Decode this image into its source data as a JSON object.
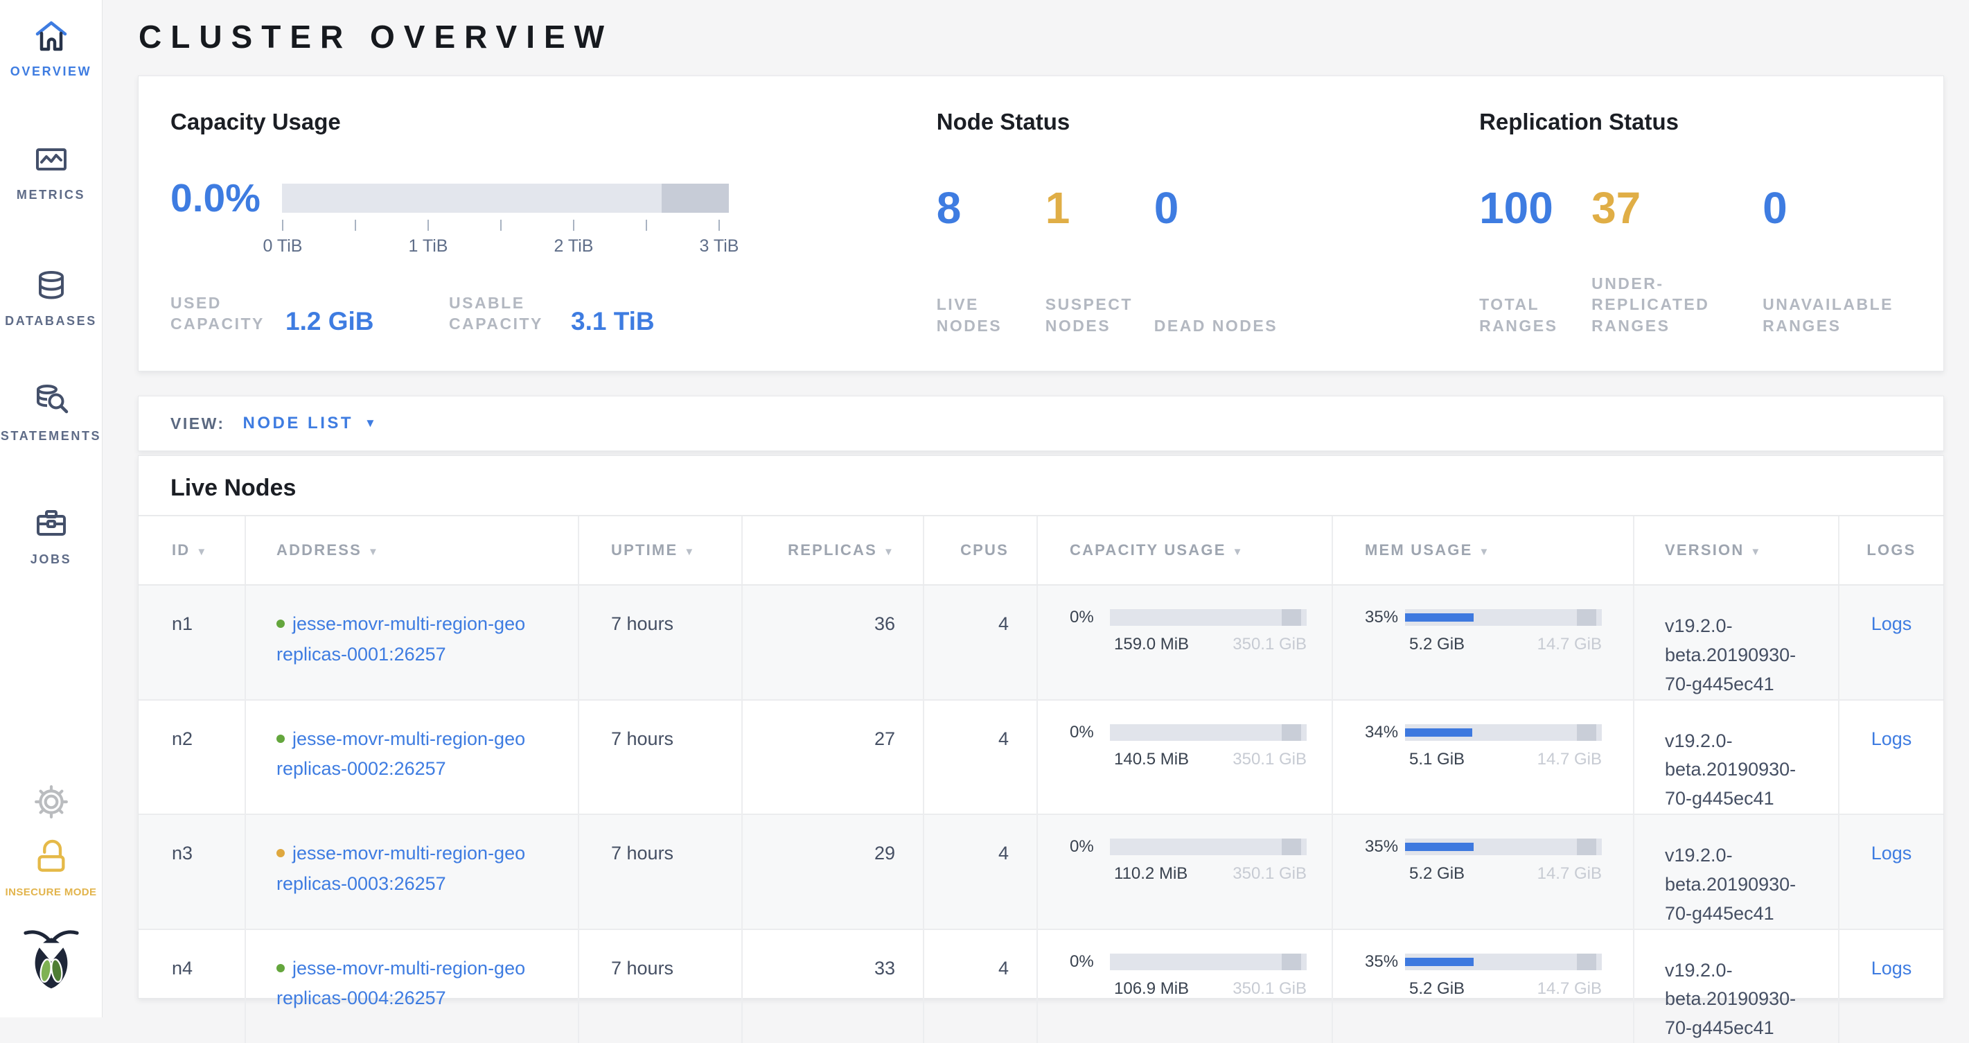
{
  "app": {
    "title": "CLUSTER OVERVIEW"
  },
  "icons": {
    "sort_desc": "▼",
    "caret_down": "▼"
  },
  "colors": {
    "accent_blue": "#3E7CE1",
    "warning_yellow": "#E0AE46",
    "healthy_green": "#64A63D",
    "suspect_yellow": "#DFA83F"
  },
  "sidebar": {
    "nav": [
      {
        "label": "OVERVIEW",
        "icon": "home-icon",
        "active": true
      },
      {
        "label": "METRICS",
        "icon": "metrics-icon",
        "active": false
      },
      {
        "label": "DATABASES",
        "icon": "databases-icon",
        "active": false
      },
      {
        "label": "STATEMENTS",
        "icon": "statements-icon",
        "active": false
      },
      {
        "label": "JOBS",
        "icon": "jobs-icon",
        "active": false
      }
    ],
    "security": {
      "label": "INSECURE MODE"
    }
  },
  "summary": {
    "capacity": {
      "title": "Capacity Usage",
      "percent": "0.0%",
      "scale_ticks": [
        "0 TiB",
        "1 TiB",
        "2 TiB",
        "3 TiB"
      ],
      "used_label": "USED CAPACITY",
      "used_value": "1.2 GiB",
      "usable_label": "USABLE CAPACITY",
      "usable_value": "3.1 TiB"
    },
    "nodes": {
      "title": "Node Status",
      "stats": [
        {
          "value": "8",
          "label": "LIVE NODES",
          "tone": "blue"
        },
        {
          "value": "1",
          "label": "SUSPECT NODES",
          "tone": "yellow"
        },
        {
          "value": "0",
          "label": "DEAD NODES",
          "tone": "blue"
        }
      ]
    },
    "replication": {
      "title": "Replication Status",
      "stats": [
        {
          "value": "100",
          "label": "TOTAL RANGES",
          "tone": "blue"
        },
        {
          "value": "37",
          "label": "UNDER-REPLICATED RANGES",
          "tone": "yellow"
        },
        {
          "value": "0",
          "label": "UNAVAILABLE RANGES",
          "tone": "blue"
        }
      ]
    }
  },
  "view_bar": {
    "label": "VIEW:",
    "selected": "NODE LIST"
  },
  "table": {
    "title": "Live Nodes",
    "columns": [
      {
        "label": "ID",
        "sortable": true
      },
      {
        "label": "ADDRESS",
        "sortable": true
      },
      {
        "label": "UPTIME",
        "sortable": true
      },
      {
        "label": "REPLICAS",
        "sortable": true
      },
      {
        "label": "CPUS",
        "sortable": false
      },
      {
        "label": "CAPACITY USAGE",
        "sortable": true
      },
      {
        "label": "MEM USAGE",
        "sortable": true
      },
      {
        "label": "VERSION",
        "sortable": true
      },
      {
        "label": "LOGS",
        "sortable": false
      }
    ],
    "rows": [
      {
        "id": "n1",
        "status": "healthy",
        "address_lines": [
          "jesse-movr-multi-region-geo",
          "replicas-0001:26257"
        ],
        "uptime": "7 hours",
        "replicas": "36",
        "cpus": "4",
        "capacity": {
          "percent": "0%",
          "fill_pct": 0,
          "used": "159.0 MiB",
          "total": "350.1 GiB"
        },
        "memory": {
          "percent": "35%",
          "fill_pct": 35,
          "used": "5.2 GiB",
          "total": "14.7 GiB"
        },
        "version": "v19.2.0-beta.20190930-70-g445ec41",
        "logs_label": "Logs"
      },
      {
        "id": "n2",
        "status": "healthy",
        "address_lines": [
          "jesse-movr-multi-region-geo",
          "replicas-0002:26257"
        ],
        "uptime": "7 hours",
        "replicas": "27",
        "cpus": "4",
        "capacity": {
          "percent": "0%",
          "fill_pct": 0,
          "used": "140.5 MiB",
          "total": "350.1 GiB"
        },
        "memory": {
          "percent": "34%",
          "fill_pct": 34,
          "used": "5.1 GiB",
          "total": "14.7 GiB"
        },
        "version": "v19.2.0-beta.20190930-70-g445ec41",
        "logs_label": "Logs"
      },
      {
        "id": "n3",
        "status": "suspect",
        "address_lines": [
          "jesse-movr-multi-region-geo",
          "replicas-0003:26257"
        ],
        "uptime": "7 hours",
        "replicas": "29",
        "cpus": "4",
        "capacity": {
          "percent": "0%",
          "fill_pct": 0,
          "used": "110.2 MiB",
          "total": "350.1 GiB"
        },
        "memory": {
          "percent": "35%",
          "fill_pct": 35,
          "used": "5.2 GiB",
          "total": "14.7 GiB"
        },
        "version": "v19.2.0-beta.20190930-70-g445ec41",
        "logs_label": "Logs"
      },
      {
        "id": "n4",
        "status": "healthy",
        "address_lines": [
          "jesse-movr-multi-region-geo",
          "replicas-0004:26257"
        ],
        "uptime": "7 hours",
        "replicas": "33",
        "cpus": "4",
        "capacity": {
          "percent": "0%",
          "fill_pct": 0,
          "used": "106.9 MiB",
          "total": "350.1 GiB"
        },
        "memory": {
          "percent": "35%",
          "fill_pct": 35,
          "used": "5.2 GiB",
          "total": "14.7 GiB"
        },
        "version": "v19.2.0-beta.20190930-70-g445ec41",
        "logs_label": "Logs"
      }
    ]
  }
}
